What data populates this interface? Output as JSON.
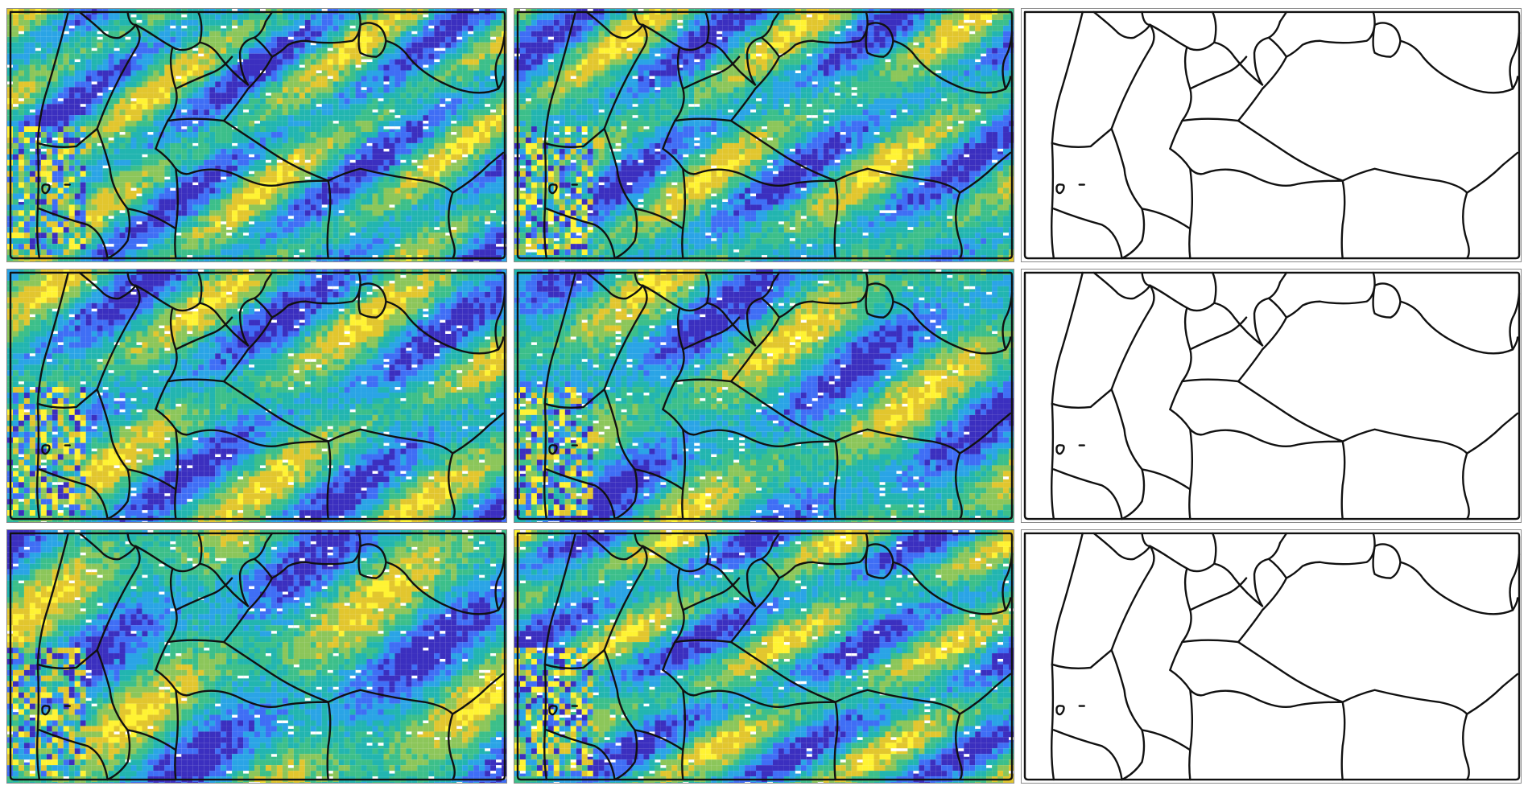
{
  "figure": {
    "layout": {
      "rows": 3,
      "columns": 3
    },
    "colormap": [
      "#3b2fbf",
      "#3f6ef5",
      "#2aa4e6",
      "#22b5b0",
      "#3cbf8a",
      "#8cc65a",
      "#e2c62e",
      "#fff333"
    ],
    "grain_boundary_color": "#111111",
    "grain_boundary_network": "shared",
    "panel_types": {
      "col-1": "colored-map",
      "col-2": "colored-map",
      "col-3": "boundaries-only"
    }
  }
}
